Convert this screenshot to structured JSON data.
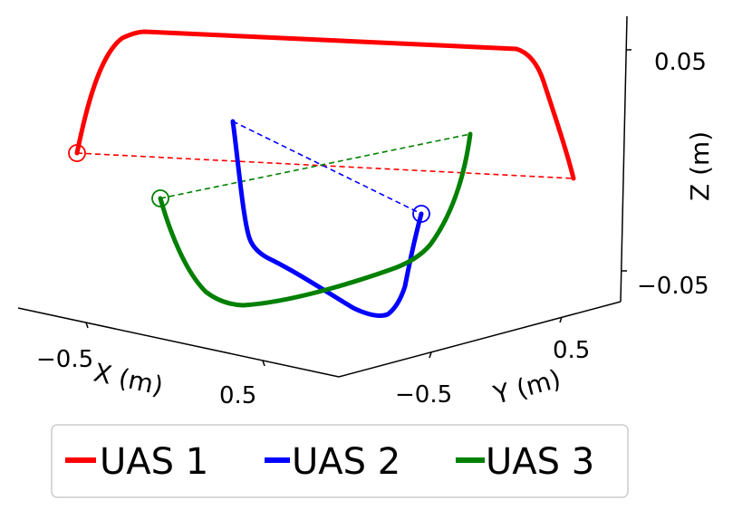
{
  "chart_data": {
    "type": "line",
    "projection": "3d",
    "legend_placement": "bottom",
    "grid": false,
    "axes": {
      "x": {
        "label": "X (m)",
        "ticks": [
          "−0.5",
          "0.5"
        ]
      },
      "y": {
        "label": "Y (m)",
        "ticks": [
          "−0.5",
          "0.5"
        ]
      },
      "z": {
        "label": "Z (m)",
        "ticks": [
          "0.05",
          "−0.05"
        ]
      }
    },
    "series": [
      {
        "name": "UAS 1",
        "color": "#ff0000",
        "style": "solid trajectory, dashed straight-line reference, circle marker at start"
      },
      {
        "name": "UAS 2",
        "color": "#0000ff",
        "style": "solid trajectory, dashed straight-line reference, circle marker at start"
      },
      {
        "name": "UAS 3",
        "color": "#008000",
        "style": "solid trajectory, dashed straight-line reference, circle marker at start"
      }
    ]
  }
}
